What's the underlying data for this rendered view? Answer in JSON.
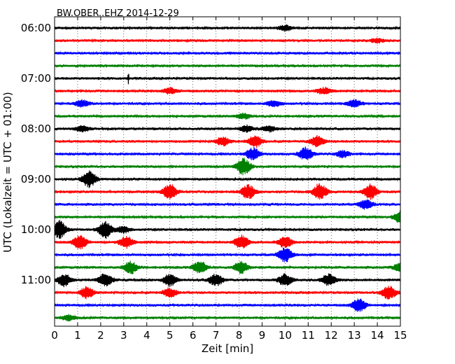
{
  "chart_data": {
    "type": "line",
    "title": "BW.OBER..EHZ 2014-12-29",
    "xlabel": "Zeit  [min]",
    "ylabel": "UTC (Lokalzeit = UTC + 01:00)",
    "xlim": [
      0,
      15
    ],
    "x_ticks": [
      "0",
      "1",
      "2",
      "3",
      "4",
      "5",
      "6",
      "7",
      "8",
      "9",
      "10",
      "11",
      "12",
      "13",
      "14",
      "15"
    ],
    "y_ticks": [
      "06:00",
      "07:00",
      "08:00",
      "09:00",
      "10:00",
      "11:00"
    ],
    "grid": "vertical dotted",
    "trace_colors": [
      "#000000",
      "#ff0000",
      "#0000ff",
      "#008000"
    ],
    "series": [
      {
        "start": "06:00",
        "bursts": [
          [
            10,
            0.7
          ]
        ]
      },
      {
        "start": "06:15",
        "bursts": [
          [
            14,
            0.5
          ]
        ]
      },
      {
        "start": "06:30",
        "bursts": []
      },
      {
        "start": "06:45",
        "bursts": []
      },
      {
        "start": "07:00",
        "bursts": [
          [
            3.2,
            1.8,
            "spike"
          ]
        ]
      },
      {
        "start": "07:15",
        "bursts": [
          [
            5.0,
            0.8
          ],
          [
            11.7,
            0.9
          ]
        ]
      },
      {
        "start": "07:30",
        "bursts": [
          [
            1.2,
            0.9
          ],
          [
            9.5,
            0.8
          ],
          [
            13.0,
            1.0
          ]
        ]
      },
      {
        "start": "07:45",
        "bursts": [
          [
            8.2,
            0.7
          ]
        ]
      },
      {
        "start": "08:00",
        "bursts": [
          [
            1.2,
            0.8
          ],
          [
            8.3,
            0.8
          ],
          [
            9.3,
            0.7
          ]
        ]
      },
      {
        "start": "08:15",
        "bursts": [
          [
            7.3,
            1.2
          ],
          [
            8.7,
            1.6
          ],
          [
            11.4,
            1.5
          ]
        ]
      },
      {
        "start": "08:30",
        "bursts": [
          [
            8.6,
            1.6
          ],
          [
            10.9,
            1.7
          ],
          [
            12.5,
            0.9
          ]
        ]
      },
      {
        "start": "08:45",
        "bursts": [
          [
            8.2,
            2.2
          ]
        ]
      },
      {
        "start": "09:00",
        "bursts": [
          [
            1.5,
            2.2
          ]
        ]
      },
      {
        "start": "09:15",
        "bursts": [
          [
            5.0,
            2.0
          ],
          [
            8.4,
            1.8
          ],
          [
            11.5,
            2.2
          ],
          [
            13.7,
            2.0
          ]
        ]
      },
      {
        "start": "09:30",
        "bursts": [
          [
            13.5,
            1.2
          ]
        ]
      },
      {
        "start": "09:45",
        "bursts": [
          [
            15.0,
            1.5
          ]
        ]
      },
      {
        "start": "10:00",
        "bursts": [
          [
            0.2,
            2.4
          ],
          [
            2.2,
            2.2
          ],
          [
            3.0,
            0.8
          ]
        ]
      },
      {
        "start": "10:15",
        "bursts": [
          [
            1.1,
            1.8
          ],
          [
            3.1,
            1.6
          ],
          [
            8.1,
            1.8
          ],
          [
            10.0,
            1.5
          ]
        ]
      },
      {
        "start": "10:30",
        "bursts": [
          [
            10.0,
            1.9
          ]
        ]
      },
      {
        "start": "10:45",
        "bursts": [
          [
            3.3,
            1.6
          ],
          [
            6.3,
            1.6
          ],
          [
            8.1,
            1.6
          ],
          [
            15.0,
            1.2
          ]
        ]
      },
      {
        "start": "11:00",
        "bursts": [
          [
            0.4,
            1.6
          ],
          [
            2.2,
            1.8
          ],
          [
            5.0,
            1.6
          ],
          [
            7.0,
            1.6
          ],
          [
            10.0,
            1.6
          ],
          [
            11.9,
            1.6
          ]
        ]
      },
      {
        "start": "11:15",
        "bursts": [
          [
            1.4,
            1.6
          ],
          [
            5.0,
            1.2
          ],
          [
            14.5,
            1.8
          ]
        ]
      },
      {
        "start": "11:30",
        "bursts": [
          [
            13.2,
            1.7
          ]
        ]
      },
      {
        "start": "11:45",
        "bursts": [
          [
            0.6,
            0.7
          ]
        ]
      }
    ]
  }
}
